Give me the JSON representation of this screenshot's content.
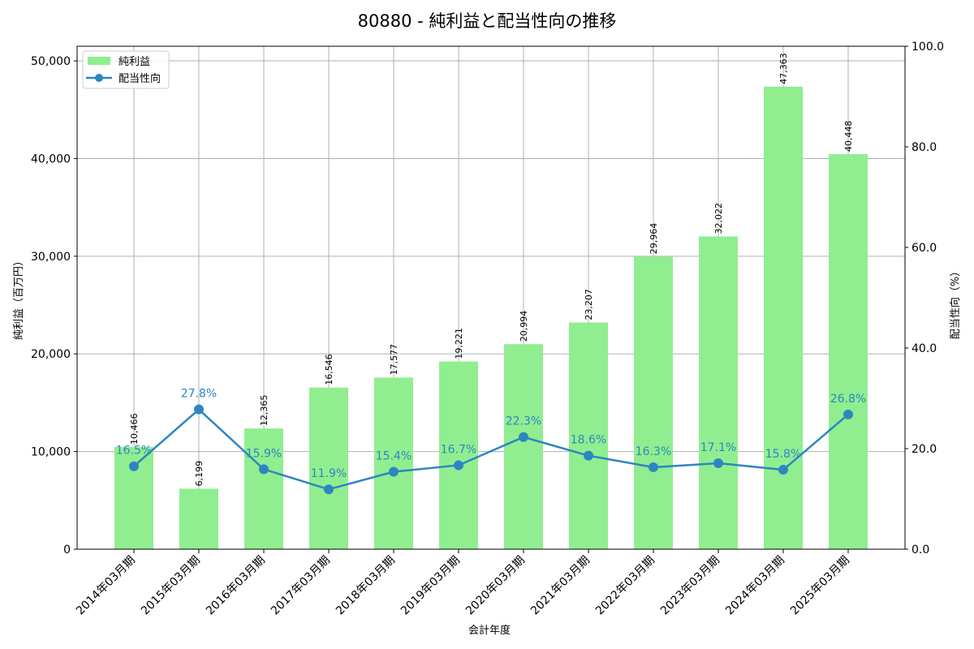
{
  "title": "80880 - 純利益と配当性向の推移",
  "chart_data": {
    "type": "bar+line",
    "title": "80880 - 純利益と配当性向の推移",
    "xlabel": "会計年度",
    "ylabel": "純利益（百万円）",
    "y2label": "配当性向（%）",
    "categories": [
      "2014年03月期",
      "2015年03月期",
      "2016年03月期",
      "2017年03月期",
      "2018年03月期",
      "2019年03月期",
      "2020年03月期",
      "2021年03月期",
      "2022年03月期",
      "2023年03月期",
      "2024年03月期",
      "2025年03月期"
    ],
    "series": [
      {
        "name": "純利益",
        "type": "bar",
        "axis": "left",
        "color": "#90ee90",
        "values": [
          10466,
          6199,
          12365,
          16546,
          17577,
          19221,
          20994,
          23207,
          29964,
          32022,
          47363,
          40448
        ],
        "labels": [
          "10,466",
          "6,199",
          "12,365",
          "16,546",
          "17,577",
          "19,221",
          "20,994",
          "23,207",
          "29,964",
          "32,022",
          "47,363",
          "40,448"
        ]
      },
      {
        "name": "配当性向",
        "type": "line",
        "axis": "right",
        "color": "#2e86c1",
        "values": [
          16.5,
          27.8,
          15.9,
          11.9,
          15.4,
          16.7,
          22.3,
          18.6,
          16.3,
          17.1,
          15.8,
          26.8
        ],
        "labels": [
          "16.5%",
          "27.8%",
          "15.9%",
          "11.9%",
          "15.4%",
          "16.7%",
          "22.3%",
          "18.6%",
          "16.3%",
          "17.1%",
          "15.8%",
          "26.8%"
        ]
      }
    ],
    "ylim": [
      0,
      51500
    ],
    "y2lim": [
      0,
      100
    ],
    "yticks": [
      0,
      10000,
      20000,
      30000,
      40000,
      50000
    ],
    "ytick_labels": [
      "0",
      "10,000",
      "20,000",
      "30,000",
      "40,000",
      "50,000"
    ],
    "y2ticks": [
      0,
      20,
      40,
      60,
      80,
      100
    ],
    "y2tick_labels": [
      "0.0",
      "20.0",
      "40.0",
      "60.0",
      "80.0",
      "100.0"
    ],
    "grid": true,
    "legend_position": "upper left"
  },
  "legend": {
    "items": [
      {
        "label": "純利益"
      },
      {
        "label": "配当性向"
      }
    ]
  }
}
